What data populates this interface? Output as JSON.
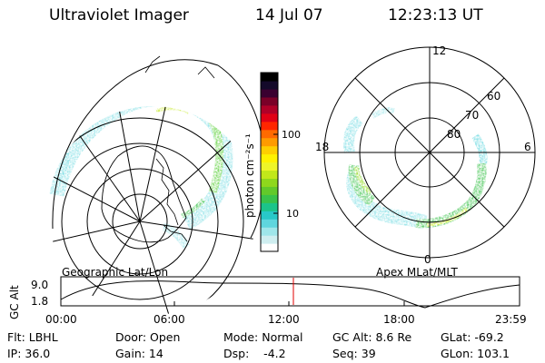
{
  "header": {
    "title": "Ultraviolet Imager",
    "date": "14 Jul 07",
    "time": "12:23:13 UT"
  },
  "left_panel": {
    "caption": "Geographic Lat/Lon"
  },
  "right_panel": {
    "caption": "Apex MLat/MLT",
    "mlt_labels": [
      "12",
      "6",
      "0",
      "18"
    ],
    "lat_labels": [
      "60",
      "70",
      "80"
    ]
  },
  "colorbar": {
    "unit_label": "photon cm⁻²s⁻¹",
    "ticks": [
      "100",
      "10"
    ],
    "colors": [
      "#ffffff",
      "#cfeef0",
      "#9fe6ea",
      "#5fd6de",
      "#28c8c8",
      "#1cc48a",
      "#39c24a",
      "#62c92a",
      "#8fd81c",
      "#c2e81a",
      "#eef528",
      "#fff200",
      "#ffcf00",
      "#ff9b00",
      "#ff6a00",
      "#ff2600",
      "#e00016",
      "#b00028",
      "#7a0028",
      "#3a0030",
      "#140a2a",
      "#000000"
    ]
  },
  "timeline": {
    "ylabel": "GC Alt",
    "yticks": [
      "9.0",
      "1.8"
    ],
    "xticks": [
      "00:00",
      "06:00",
      "12:00",
      "18:00",
      "23:59"
    ],
    "current_time_marker": "12:23",
    "marker_color": "#e00000"
  },
  "info": {
    "filter": "Flt: LBHL",
    "ip": "IP: 36.0",
    "door": "Door: Open",
    "gain": "Gain: 14",
    "mode": "Mode: Normal",
    "dsp": "Dsp:    -4.2",
    "gc_alt": "GC Alt: 8.6 Re",
    "seq": "Seq: 39",
    "glat": "GLat: -69.2",
    "glon": "GLon: 103.1"
  }
}
